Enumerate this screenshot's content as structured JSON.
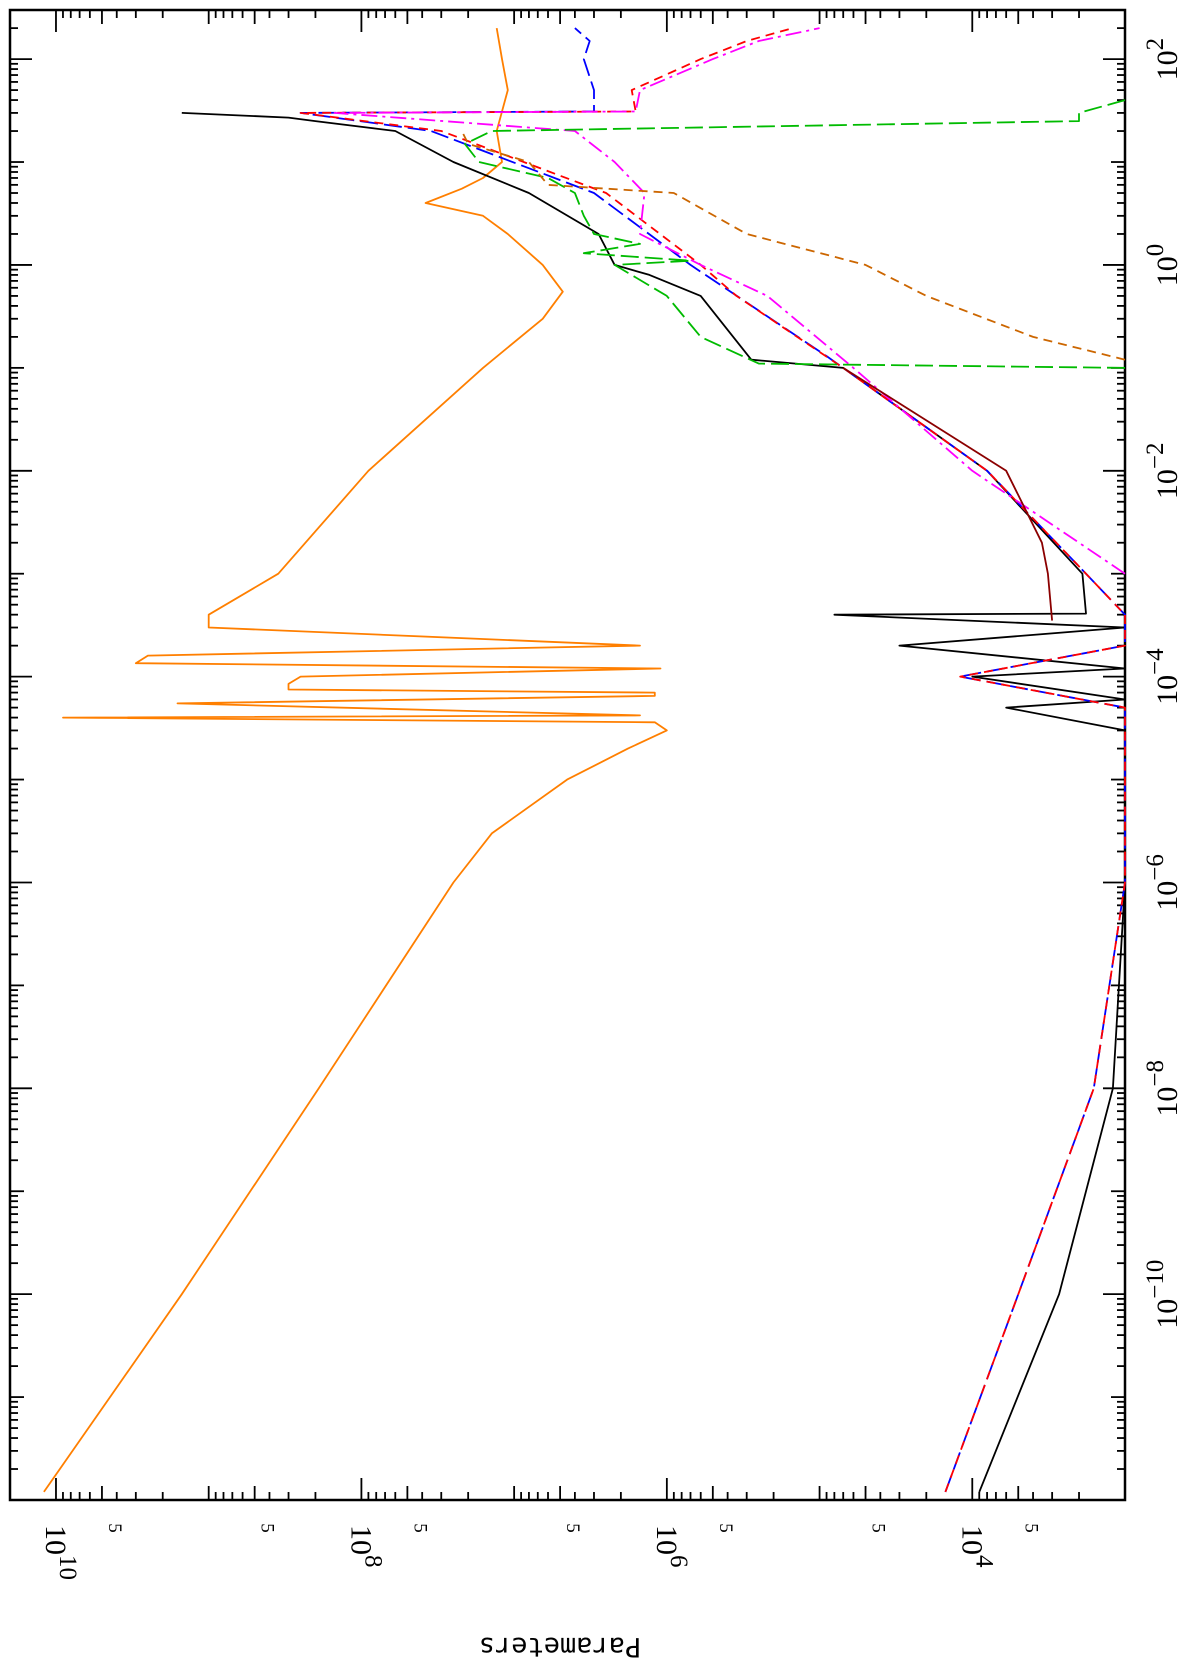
{
  "chart_data": {
    "type": "line",
    "orientation": "rotated-90-clockwise",
    "x_scale": "log",
    "y_scale": "log",
    "xlim": [
      1e-12,
      300
    ],
    "ylim": [
      1000,
      20000000000.0
    ],
    "grid": false,
    "legend": "none",
    "ylabel": "Parameters",
    "x_ticks_major": [
      {
        "value": 1e-10,
        "base": "10",
        "exp": "−10"
      },
      {
        "value": 1e-08,
        "base": "10",
        "exp": "−8"
      },
      {
        "value": 1e-06,
        "base": "10",
        "exp": "−6"
      },
      {
        "value": 0.0001,
        "base": "10",
        "exp": "−4"
      },
      {
        "value": 0.01,
        "base": "10",
        "exp": "−2"
      },
      {
        "value": 1,
        "base": "10",
        "exp": "0"
      },
      {
        "value": 100,
        "base": "10",
        "exp": "2"
      }
    ],
    "y_ticks_major": [
      {
        "value": 10000.0,
        "base": "10",
        "exp": "4"
      },
      {
        "value": 1000000.0,
        "base": "10",
        "exp": "6"
      },
      {
        "value": 100000000.0,
        "base": "10",
        "exp": "8"
      },
      {
        "value": 10000000000.0,
        "base": "10",
        "exp": "10"
      }
    ],
    "y_ticks_minor_labeled": [
      {
        "value": 5000,
        "label": "5"
      },
      {
        "value": 50000,
        "label": "5"
      },
      {
        "value": 500000,
        "label": "5"
      },
      {
        "value": 5000000,
        "label": "5"
      },
      {
        "value": 50000000,
        "label": "5"
      },
      {
        "value": 500000000,
        "label": "5"
      },
      {
        "value": 5000000000,
        "label": "5"
      }
    ],
    "series": [
      {
        "color": "#ff7f00",
        "dash": "solid",
        "x": [
          1.2e-12,
          1e-10,
          1e-08,
          1e-06,
          3e-06,
          1e-05,
          2e-05,
          3e-05,
          3.6e-05,
          4e-05,
          4.2e-05,
          5.5e-05,
          6.5e-05,
          7e-05,
          7.5e-05,
          8.5e-05,
          0.0001,
          0.00012,
          0.000135,
          0.00016,
          0.0002,
          0.0003,
          0.0004,
          0.001,
          0.01,
          0.1,
          0.3,
          0.55,
          1,
          2,
          3,
          4,
          5.5,
          7,
          10,
          20,
          50,
          100,
          200
        ],
        "y": [
          12000000000.0,
          1500000000.0,
          190000000.0,
          25000000.0,
          14000000.0,
          4500000.0,
          1800000.0,
          1000000.0,
          1200000.0,
          9000000000.0,
          1500000.0,
          1600000000.0,
          1200000.0,
          1200000.0,
          300000000.0,
          300000000.0,
          250000000.0,
          1100000.0,
          3000000000.0,
          2500000000.0,
          1500000.0,
          1000000000.0,
          1000000000.0,
          350000000.0,
          90000000.0,
          16000000.0,
          6500000.0,
          4800000.0,
          6500000.0,
          11000000.0,
          16000000.0,
          38000000.0,
          22000000.0,
          16000000.0,
          12000000.0,
          13000000.0,
          11000000.0,
          12000000.0,
          13000000.0
        ]
      },
      {
        "color": "#000000",
        "dash": "solid",
        "x": [
          1.2e-12,
          1e-10,
          1e-08,
          1e-06,
          1.4e-06,
          3e-05,
          5e-05,
          6e-05,
          0.0001,
          0.00012,
          0.0002,
          0.0003,
          0.0004,
          0.00041,
          0.001,
          0.01,
          0.1,
          0.12,
          0.5,
          0.8,
          1,
          2,
          5,
          10,
          20,
          25,
          27,
          30
        ],
        "y": [
          9000.0,
          2700.0,
          1200.0,
          900,
          900,
          900,
          6000.0,
          900,
          10000.0,
          900,
          30000.0,
          900,
          80000.0,
          1800.0,
          1900.0,
          8000.0,
          70000.0,
          280000.0,
          600000.0,
          1300000.0,
          2200000.0,
          2800000.0,
          8000000.0,
          25000000.0,
          60000000.0,
          200000000.0,
          300000000.0,
          1500000000.0
        ]
      },
      {
        "color": "#0000ff",
        "dash": "long-dash",
        "x": [
          1.2e-12,
          1e-10,
          1e-08,
          1e-06,
          1.4e-06,
          5e-05,
          0.0001,
          0.0002,
          0.0004,
          0.001,
          0.01,
          0.1,
          0.13,
          1,
          5,
          20,
          30,
          31,
          50,
          100,
          150,
          200
        ],
        "y": [
          15000.0,
          5000.0,
          1600.0,
          900,
          900,
          900,
          12000.0,
          900,
          900,
          1800.0,
          8000.0,
          70000.0,
          90000.0,
          700000.0,
          3000000.0,
          35000000.0,
          250000000.0,
          3000000.0,
          3000000.0,
          3500000.0,
          3200000.0,
          4000000.0
        ]
      },
      {
        "color": "#ff0000",
        "dash": "dash",
        "x": [
          1.2e-12,
          1e-10,
          1e-08,
          1e-06,
          1.4e-06,
          5e-05,
          0.0001,
          0.0002,
          0.0004,
          0.001,
          0.01,
          0.1,
          0.5,
          1,
          5,
          20,
          30,
          31,
          50,
          100,
          150,
          200
        ],
        "y": [
          15000.0,
          5000.0,
          1600.0,
          900,
          900,
          900,
          12000.0,
          900,
          900,
          1800.0,
          8000.0,
          70000.0,
          350000.0,
          600000.0,
          2500000.0,
          30000000.0,
          250000000.0,
          1600000.0,
          1700000.0,
          600000.0,
          300000.0,
          150000.0
        ]
      },
      {
        "color": "#ff00ff",
        "dash": "dash-dot",
        "x": [
          0.001,
          0.003,
          0.01,
          0.1,
          0.5,
          1,
          2,
          5,
          10,
          20,
          30,
          31,
          50,
          100,
          150,
          200
        ],
        "y": [
          1000.0,
          3000.0,
          10000.0,
          60000.0,
          220000.0,
          600000.0,
          1500000.0,
          1400000.0,
          2200000.0,
          4000000.0,
          150000000.0,
          1600000.0,
          1500000.0,
          500000.0,
          250000.0,
          100000.0
        ]
      },
      {
        "color": "#00bb00",
        "dash": "long-dash",
        "x": [
          0.1,
          0.11,
          0.2,
          0.5,
          1,
          1.1,
          1.3,
          1.6,
          2,
          3,
          5,
          7,
          10,
          15,
          20,
          25,
          30,
          40
        ],
        "y": [
          1000.0,
          250000.0,
          600000.0,
          1000000.0,
          2200000.0,
          700000.0,
          3500000.0,
          1500000.0,
          3000000.0,
          3500000.0,
          4000000.0,
          6000000.0,
          17000000.0,
          21000000.0,
          14000000.0,
          2000.0,
          2000.0,
          900
        ]
      },
      {
        "color": "#cc6600",
        "dash": "dash",
        "x": [
          0.12,
          0.2,
          0.5,
          1,
          2,
          5,
          6,
          10,
          15,
          20
        ],
        "y": [
          1000.0,
          4000.0,
          20000.0,
          50000.0,
          300000.0,
          900000.0,
          6000000.0,
          8000000.0,
          20000000.0,
          22000000.0
        ]
      },
      {
        "color": "#8b0000",
        "dash": "solid",
        "x": [
          0.00035,
          0.001,
          0.002,
          0.01,
          0.1
        ],
        "y": [
          3000.0,
          3200.0,
          3500.0,
          6000.0,
          70000.0
        ]
      }
    ]
  }
}
